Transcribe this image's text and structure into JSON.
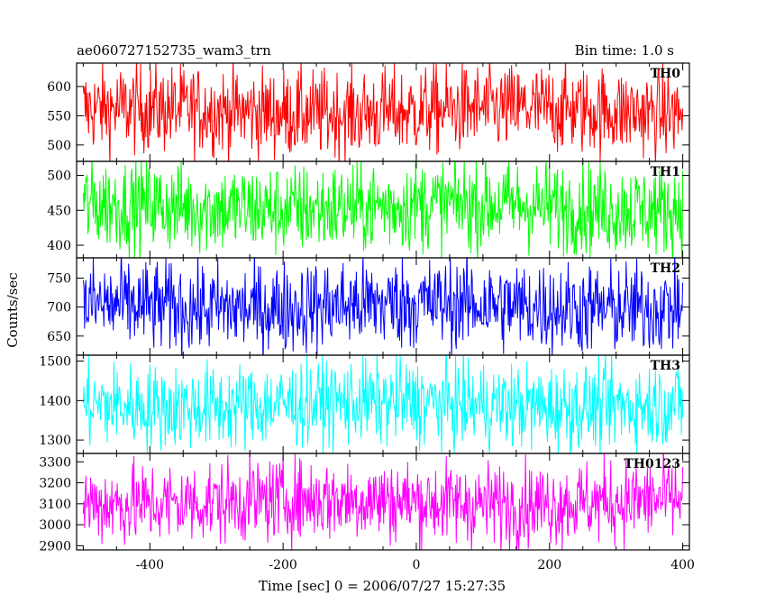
{
  "chart_data": {
    "type": "line",
    "title": "ae060727152735_wam3_trn",
    "subtitle": "Bin time: 1.0 s",
    "xlabel": "Time [sec] 0 = 2006/07/27 15:27:35",
    "ylabel": "Counts/sec",
    "xlim": [
      -510,
      410
    ],
    "x_ticks": [
      "-400",
      "-200",
      "0",
      "200",
      "400"
    ],
    "x_tick_values": [
      -400,
      -200,
      0,
      200,
      400
    ],
    "x_start": -500,
    "x_end": 400,
    "bin": 1.0,
    "panels": [
      {
        "name": "TH0",
        "color": "#ff0000",
        "ylim": [
          472,
          640
        ],
        "y_ticks": [
          "500",
          "550",
          "600"
        ],
        "y_tick_values": [
          500,
          550,
          600
        ],
        "mean": 558,
        "amplitude": 38
      },
      {
        "name": "TH1",
        "color": "#00ff00",
        "ylim": [
          382,
          520
        ],
        "y_ticks": [
          "400",
          "450",
          "500"
        ],
        "y_tick_values": [
          400,
          450,
          500
        ],
        "mean": 455,
        "amplitude": 33
      },
      {
        "name": "TH2",
        "color": "#0000ff",
        "ylim": [
          617,
          785
        ],
        "y_ticks": [
          "650",
          "700",
          "750"
        ],
        "y_tick_values": [
          650,
          700,
          750
        ],
        "mean": 702,
        "amplitude": 40
      },
      {
        "name": "TH3",
        "color": "#00ffff",
        "ylim": [
          1266,
          1515
        ],
        "y_ticks": [
          "1300",
          "1400",
          "1500"
        ],
        "y_tick_values": [
          1300,
          1400,
          1500
        ],
        "mean": 1390,
        "amplitude": 55
      },
      {
        "name": "TH0123",
        "color": "#ff00ff",
        "ylim": [
          2880,
          3340
        ],
        "y_ticks": [
          "2900",
          "3000",
          "3100",
          "3200",
          "3300"
        ],
        "y_tick_values": [
          2900,
          3000,
          3100,
          3200,
          3300
        ],
        "mean": 3110,
        "amplitude": 100
      }
    ]
  }
}
